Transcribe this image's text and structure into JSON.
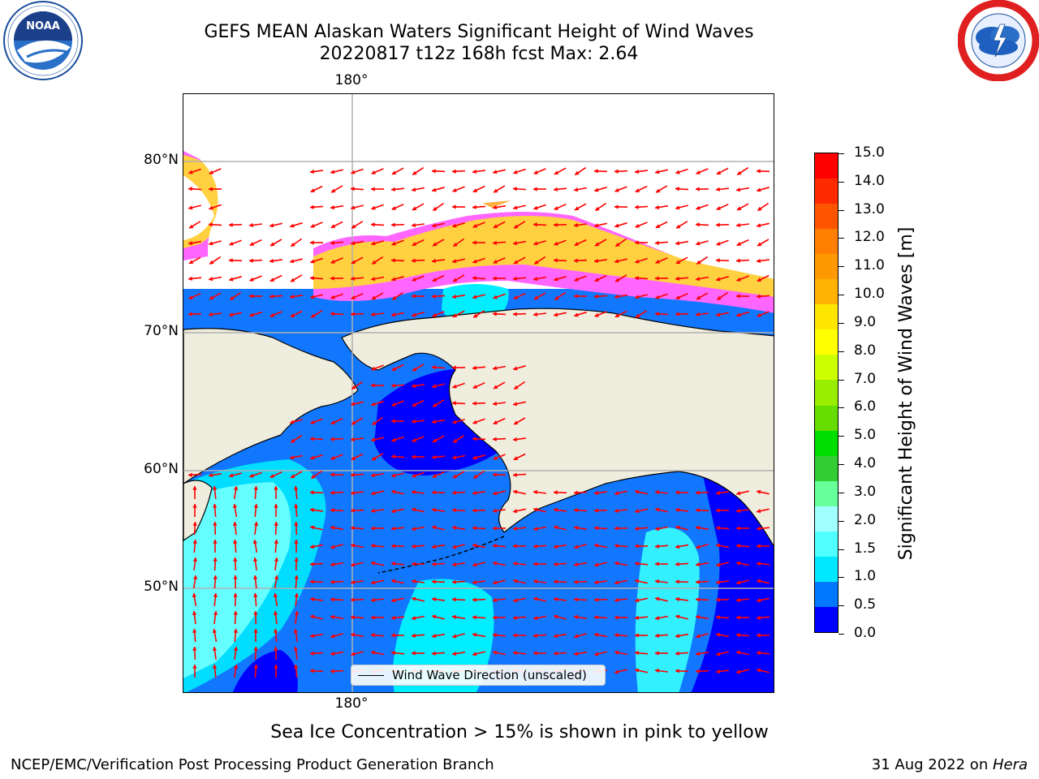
{
  "title": {
    "line1": "GEFS MEAN Alaskan Waters Significant Height of Wind Waves",
    "line2": "20220817 t12z 168h fcst   Max: 2.64"
  },
  "logos": {
    "noaa_icon": "noaa-logo",
    "noaa_text": "NOAA",
    "noaa_ring_text": "NATIONAL OCEANIC AND ATMOSPHERIC ADMINISTRATION · U.S. DEPARTMENT OF COMMERCE",
    "nws_icon": "nws-logo",
    "nws_ring_text": "NATIONAL WEATHER SERVICE"
  },
  "map": {
    "lon_label_top": "180°",
    "lon_label_bottom": "180°",
    "lat_labels": [
      "80°N",
      "70°N",
      "60°N",
      "50°N"
    ],
    "legend_label": "Wind Wave Direction (unscaled)",
    "colors": {
      "land": "#efedde",
      "ice_pink": "#ff66ff",
      "ice_yellow": "#ffd040",
      "ice_orange": "#ffb040",
      "arrow": "#ff0000",
      "grid": "#b0b0b0"
    }
  },
  "colorbar": {
    "title": "Significant Height of Wind Waves [m]",
    "ticks": [
      "15.0",
      "14.0",
      "13.0",
      "12.0",
      "11.0",
      "10.0",
      "9.0",
      "8.0",
      "7.0",
      "6.0",
      "5.0",
      "4.0",
      "3.0",
      "2.0",
      "1.5",
      "1.0",
      "0.5",
      "0.0"
    ],
    "colors_top_to_bottom": [
      "#ff0000",
      "#ff2a00",
      "#ff5500",
      "#ff7f00",
      "#ff9900",
      "#ffb300",
      "#ffe600",
      "#ffff00",
      "#ccff00",
      "#99ee00",
      "#66dd00",
      "#00dd00",
      "#33cc33",
      "#66ff99",
      "#a0ffff",
      "#50ffff",
      "#00e8ff",
      "#0077ff",
      "#0000ff"
    ]
  },
  "footer": {
    "note": "Sea Ice Concentration > 15% is shown in pink to yellow",
    "left": "NCEP/EMC/Verification Post Processing Product Generation Branch",
    "right_date": "31 Aug 2022 on ",
    "right_host": "Hera"
  }
}
